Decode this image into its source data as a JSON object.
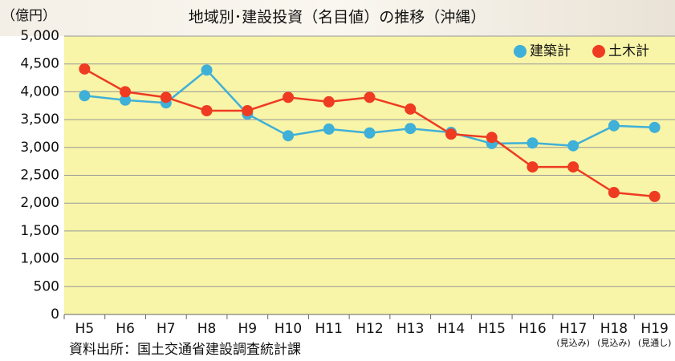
{
  "chart_data": {
    "type": "line",
    "title": "地域別･建設投資（名目値）の推移（沖縄）",
    "y_label": "（億円）",
    "source": "資料出所：国土交通省建設調査統計課",
    "categories": [
      "H5",
      "H6",
      "H7",
      "H8",
      "H9",
      "H10",
      "H11",
      "H12",
      "H13",
      "H14",
      "H15",
      "H16",
      "H17",
      "H18",
      "H19"
    ],
    "x_sublabels": [
      null,
      null,
      null,
      null,
      null,
      null,
      null,
      null,
      null,
      null,
      null,
      null,
      "(見込み)",
      "(見込み)",
      "(見通し)"
    ],
    "series": [
      {
        "name": "建築計",
        "color": "#3fb0d8",
        "values": [
          3930,
          3850,
          3800,
          4390,
          3600,
          3210,
          3330,
          3260,
          3340,
          3270,
          3070,
          3080,
          3030,
          3390,
          3360
        ]
      },
      {
        "name": "土木計",
        "color": "#ee3b22",
        "values": [
          4410,
          4000,
          3900,
          3660,
          3660,
          3900,
          3820,
          3900,
          3690,
          3240,
          3180,
          2650,
          2650,
          2190,
          2120
        ]
      }
    ],
    "ylim": [
      0,
      5000
    ],
    "yticks": [
      0,
      500,
      {
        "value": 1000,
        "label": "1,000"
      },
      {
        "value": 1500,
        "label": "1,500"
      },
      {
        "value": 2000,
        "label": "2,000"
      },
      {
        "value": 2500,
        "label": "2,500"
      },
      {
        "value": 3000,
        "label": "3,000"
      },
      {
        "value": 3500,
        "label": "3,500"
      },
      {
        "value": 4000,
        "label": "4,000"
      },
      {
        "value": 4500,
        "label": "4,500"
      },
      {
        "value": 5000,
        "label": "5,000"
      }
    ],
    "grid": true,
    "legend": "top-right"
  }
}
